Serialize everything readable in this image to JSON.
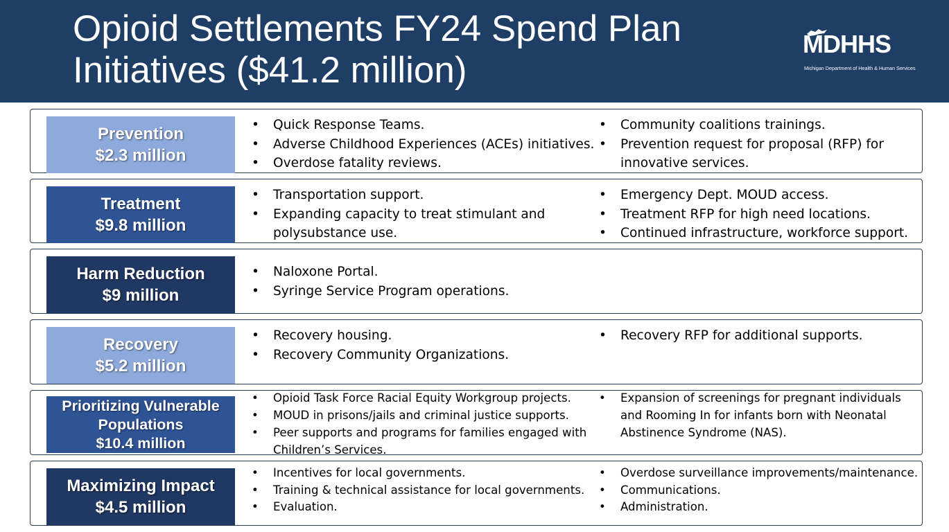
{
  "header": {
    "title_line1": "Opioid Settlements FY24 Spend Plan",
    "title_line2": "Initiatives ($41.2 million)",
    "logo_text": "MDHHS",
    "logo_subtitle": "Michigan Department of Health & Human Services"
  },
  "colors": {
    "header_bg": "#1f3e66",
    "light_blue": "#8eaadc",
    "medium_blue": "#2f5496",
    "dark_blue": "#203864"
  },
  "panels": [
    {
      "name": "Prevention",
      "amount": "$2.3 million",
      "left_items": [
        "Quick Response Teams.",
        "Adverse Childhood Experiences (ACEs) initiatives.",
        "Overdose fatality reviews."
      ],
      "right_items": [
        "Community coalitions trainings.",
        "Prevention request for proposal (RFP) for innovative services."
      ]
    },
    {
      "name": "Treatment",
      "amount": "$9.8 million",
      "left_items": [
        "Transportation support.",
        "Expanding capacity to treat stimulant and polysubstance use."
      ],
      "right_items": [
        "Emergency Dept. MOUD access.",
        "Treatment RFP for high need locations.",
        "Continued infrastructure, workforce support."
      ]
    },
    {
      "name": "Harm Reduction",
      "amount": "$9 million",
      "left_items": [
        "Naloxone Portal.",
        "Syringe Service Program operations."
      ],
      "right_items": []
    },
    {
      "name": "Recovery",
      "amount": "$5.2 million",
      "left_items": [
        "Recovery housing.",
        "Recovery Community Organizations."
      ],
      "right_items": [
        "Recovery RFP for additional supports."
      ]
    },
    {
      "name_line1": "Prioritizing Vulnerable",
      "name_line2": "Populations",
      "amount": "$10.4 million",
      "left_items": [
        "Opioid Task Force Racial Equity Workgroup projects.",
        "MOUD in prisons/jails and criminal justice supports.",
        "Peer supports and programs for families engaged with Children’s Services."
      ],
      "right_items": [
        "Expansion of screenings for pregnant individuals and Rooming In for infants born with Neonatal Abstinence Syndrome (NAS)."
      ]
    },
    {
      "name": "Maximizing Impact",
      "amount": "$4.5 million",
      "left_items": [
        "Incentives for local governments.",
        "Training & technical assistance for local governments.",
        "Evaluation."
      ],
      "right_items": [
        "Overdose surveillance improvements/maintenance.",
        "Communications.",
        "Administration."
      ]
    }
  ]
}
